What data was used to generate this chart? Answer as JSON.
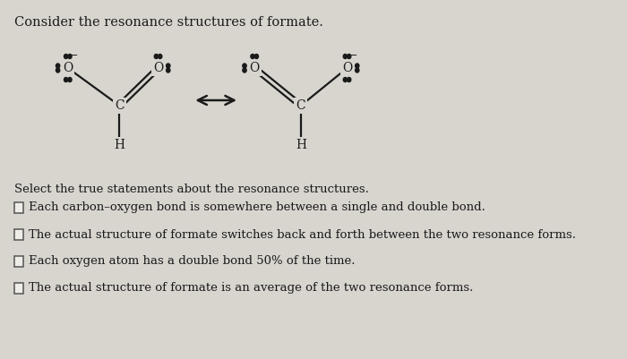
{
  "title": "Consider the resonance structures of formate.",
  "bg_color": "#d8d5cf",
  "white_bg": "#e8e6e0",
  "text_color": "#1a1a1a",
  "statements": [
    "Each carbon–oxygen bond is somewhere between a single and double bond.",
    "The actual structure of formate switches back and forth between the two resonance forms.",
    "Each oxygen atom has a double bond 50% of the time.",
    "The actual structure of formate is an average of the two resonance forms."
  ],
  "select_text": "Select the true statements about the resonance structures.",
  "font_size_title": 10.5,
  "font_size_body": 9.5,
  "font_size_chem": 9,
  "font_size_atom": 10
}
